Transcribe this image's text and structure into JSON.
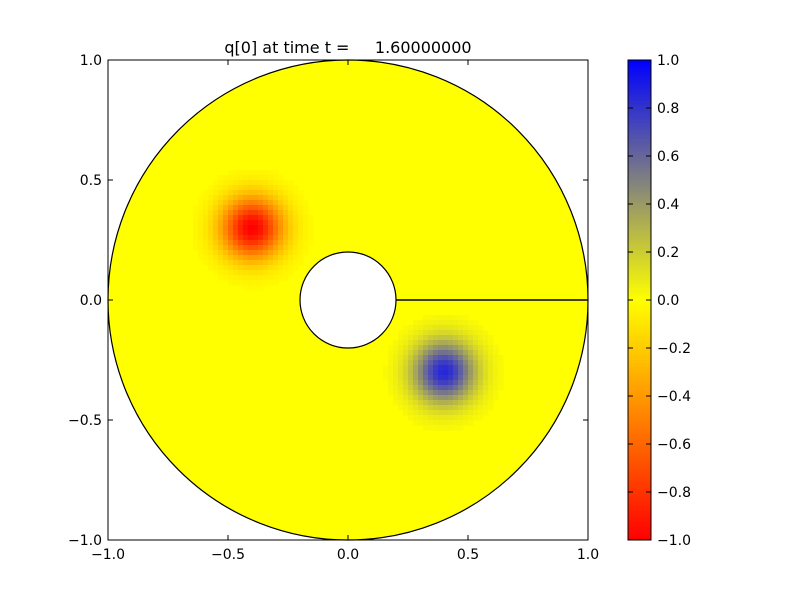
{
  "chart_data": {
    "type": "heatmap",
    "title": "q[0] at time t =     1.60000000",
    "xlabel": "",
    "ylabel": "",
    "xlim": [
      -1.0,
      1.0
    ],
    "ylim": [
      -1.0,
      1.0
    ],
    "x_ticks": [
      -1.0,
      -0.5,
      0.0,
      0.5,
      1.0
    ],
    "x_tick_labels": [
      "−1.0",
      "−0.5",
      "0.0",
      "0.5",
      "1.0"
    ],
    "y_ticks": [
      -1.0,
      -0.5,
      0.0,
      0.5,
      1.0
    ],
    "y_tick_labels": [
      "−1.0",
      "−0.5",
      "0.0",
      "0.5",
      "1.0"
    ],
    "grid": false,
    "domain": {
      "shape": "annulus",
      "center": [
        0.0,
        0.0
      ],
      "inner_radius": 0.2,
      "outer_radius": 1.0,
      "cut_line": {
        "from": [
          0.2,
          0.0
        ],
        "to": [
          1.0,
          0.0
        ]
      }
    },
    "background_value": 0.0,
    "features": [
      {
        "center": [
          -0.4,
          0.3
        ],
        "peak_value": -1.0,
        "sigma": 0.09
      },
      {
        "center": [
          0.4,
          -0.3
        ],
        "peak_value": 0.85,
        "sigma": 0.09
      }
    ],
    "colorbar": {
      "position": "right",
      "vmin": -1.0,
      "vmax": 1.0,
      "ticks": [
        1.0,
        0.8,
        0.6,
        0.4,
        0.2,
        0.0,
        -0.2,
        -0.4,
        -0.6,
        -0.8,
        -1.0
      ],
      "tick_labels": [
        "1.0",
        "0.8",
        "0.6",
        "0.4",
        "0.2",
        "0.0",
        "−0.2",
        "−0.4",
        "−0.6",
        "−0.8",
        "−1.0"
      ],
      "colormap": [
        {
          "value": -1.0,
          "color": "#ff0000"
        },
        {
          "value": 0.0,
          "color": "#ffff00"
        },
        {
          "value": 0.5,
          "color": "#808080"
        },
        {
          "value": 1.0,
          "color": "#0000ff"
        }
      ]
    }
  }
}
